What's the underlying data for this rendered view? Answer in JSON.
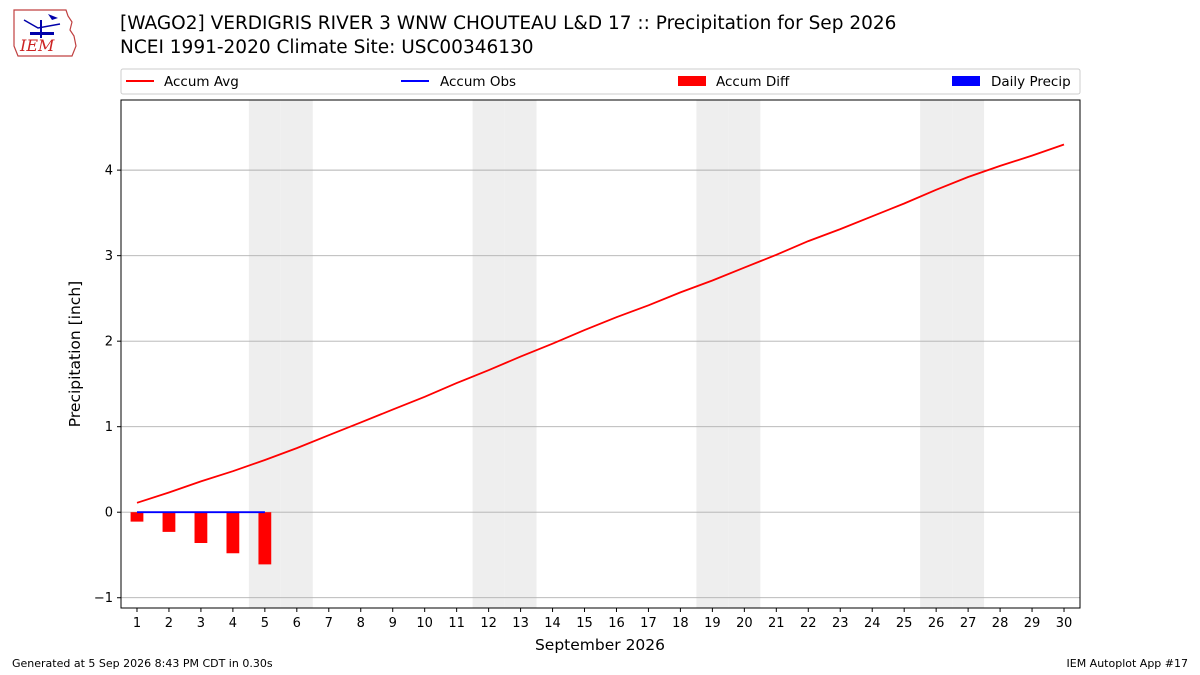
{
  "header": {
    "title": "[WAGO2] VERDIGRIS RIVER 3 WNW CHOUTEAU L&D 17 :: Precipitation for Sep 2026",
    "subtitle": "NCEI 1991-2020 Climate Site: USC00346130",
    "logo_text": "IEM"
  },
  "footer": {
    "generated": "Generated at 5 Sep 2026 8:43 PM CDT in 0.30s",
    "app": "IEM Autoplot App #17"
  },
  "colors": {
    "accum_avg": "#ff0000",
    "accum_obs": "#0000ff",
    "accum_diff": "#ff0000",
    "daily_precip": "#0000ff",
    "weekend_shade": "#eeeeee",
    "grid": "#b0b0b0"
  },
  "chart_data": {
    "type": "line",
    "xlabel": "September 2026",
    "ylabel": "Precipitation [inch]",
    "x": [
      1,
      2,
      3,
      4,
      5,
      6,
      7,
      8,
      9,
      10,
      11,
      12,
      13,
      14,
      15,
      16,
      17,
      18,
      19,
      20,
      21,
      22,
      23,
      24,
      25,
      26,
      27,
      28,
      29,
      30
    ],
    "xlim": [
      0.5,
      30.5
    ],
    "ylim": [
      -1.12,
      4.82
    ],
    "yticks": [
      -1,
      0,
      1,
      2,
      3,
      4
    ],
    "grid": "horizontal",
    "legend_position": "top",
    "legend": [
      "Accum Avg",
      "Accum Obs",
      "Accum Diff",
      "Daily Precip"
    ],
    "weekend_days": [
      5,
      6,
      12,
      13,
      19,
      20,
      26,
      27
    ],
    "series": [
      {
        "name": "Accum Avg",
        "kind": "line",
        "x": [
          1,
          2,
          3,
          4,
          5,
          6,
          7,
          8,
          9,
          10,
          11,
          12,
          13,
          14,
          15,
          16,
          17,
          18,
          19,
          20,
          21,
          22,
          23,
          24,
          25,
          26,
          27,
          28,
          29,
          30
        ],
        "values": [
          0.11,
          0.23,
          0.36,
          0.48,
          0.61,
          0.75,
          0.9,
          1.05,
          1.2,
          1.35,
          1.51,
          1.66,
          1.82,
          1.97,
          2.13,
          2.28,
          2.42,
          2.57,
          2.71,
          2.86,
          3.01,
          3.17,
          3.31,
          3.46,
          3.61,
          3.77,
          3.92,
          4.05,
          4.17,
          4.3
        ]
      },
      {
        "name": "Accum Obs",
        "kind": "line",
        "x": [
          1,
          2,
          3,
          4,
          5
        ],
        "values": [
          0,
          0,
          0,
          0,
          0
        ]
      },
      {
        "name": "Accum Diff",
        "kind": "bar",
        "x": [
          1,
          2,
          3,
          4,
          5
        ],
        "values": [
          -0.11,
          -0.23,
          -0.36,
          -0.48,
          -0.61
        ]
      },
      {
        "name": "Daily Precip",
        "kind": "bar",
        "x": [
          1,
          2,
          3,
          4,
          5
        ],
        "values": [
          0,
          0,
          0,
          0,
          0
        ]
      }
    ]
  }
}
